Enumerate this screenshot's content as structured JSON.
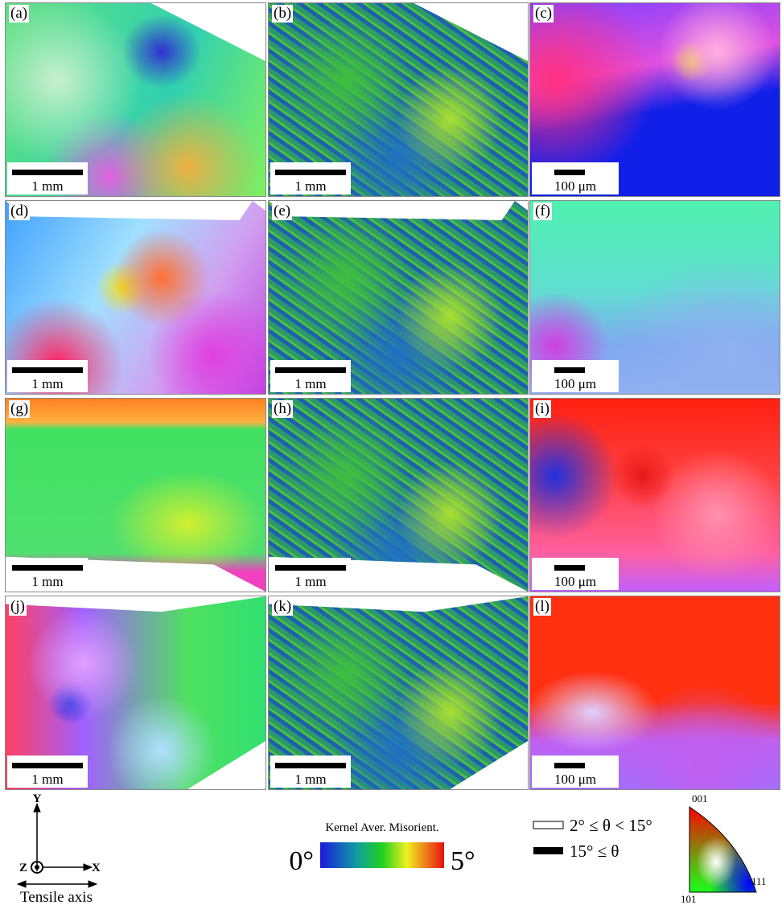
{
  "panels": [
    {
      "label": "(a)",
      "scale_bar": "1 mm"
    },
    {
      "label": "(b)",
      "scale_bar": "1 mm"
    },
    {
      "label": "(c)",
      "scale_bar": "100 μm"
    },
    {
      "label": "(d)",
      "scale_bar": "1 mm"
    },
    {
      "label": "(e)",
      "scale_bar": "1 mm"
    },
    {
      "label": "(f)",
      "scale_bar": "100 μm"
    },
    {
      "label": "(g)",
      "scale_bar": "1 mm"
    },
    {
      "label": "(h)",
      "scale_bar": "1 mm"
    },
    {
      "label": "(i)",
      "scale_bar": "100 μm"
    },
    {
      "label": "(j)",
      "scale_bar": "1 mm"
    },
    {
      "label": "(k)",
      "scale_bar": "1 mm"
    },
    {
      "label": "(l)",
      "scale_bar": "100 μm"
    }
  ],
  "legend": {
    "axes": {
      "y": "Y",
      "z": "Z",
      "x": "X",
      "caption": "Tensile axis"
    },
    "kam": {
      "title": "Kernel Aver. Misorient.",
      "min": "0°",
      "max": "5°"
    },
    "boundaries": [
      {
        "label": "2° ≤ θ < 15°"
      },
      {
        "label": "15° ≤ θ"
      }
    ],
    "ipf": {
      "top": "001",
      "left": "101",
      "right": "111"
    }
  }
}
